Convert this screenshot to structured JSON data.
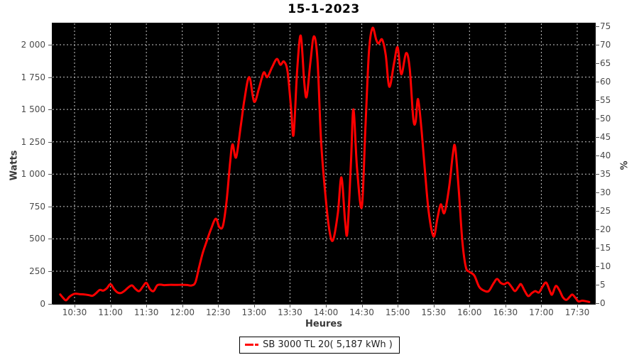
{
  "title": "15-1-2023",
  "chart_data": {
    "type": "line",
    "title": "15-1-2023",
    "xlabel": "Heures",
    "ylabel_left": "Watts",
    "ylabel_right": "%",
    "grid": true,
    "plot_background": "#000000",
    "grid_color": "#c8c8c8",
    "x_ticks": [
      "10:30",
      "11:00",
      "11:30",
      "12:00",
      "12:30",
      "13:00",
      "13:30",
      "14:00",
      "14:30",
      "15:00",
      "15:30",
      "16:00",
      "16:30",
      "17:00",
      "17:30"
    ],
    "xlim": [
      "10:12",
      "17:45"
    ],
    "y_ticks_left": [
      0,
      250,
      500,
      750,
      1000,
      1250,
      1500,
      1750,
      2000
    ],
    "y_tick_labels_left": [
      "0",
      "250",
      "500",
      "750",
      "1 000",
      "1 250",
      "1 500",
      "1 750",
      "2 000"
    ],
    "ylim_left": [
      0,
      2165
    ],
    "y_ticks_right": [
      0,
      5,
      10,
      15,
      20,
      25,
      30,
      35,
      40,
      45,
      50,
      55,
      60,
      65,
      70,
      75
    ],
    "ylim_right": [
      0,
      76
    ],
    "legend": {
      "label": "SB 3000 TL 20( 5,187 kWh )",
      "position": "bottom",
      "color": "#ff0000"
    },
    "series": [
      {
        "name": "SB 3000 TL 20( 5,187 kWh )",
        "color": "#ff0000",
        "units": "Watts",
        "points": [
          [
            "10:18",
            70
          ],
          [
            "10:21",
            38
          ],
          [
            "10:23",
            25
          ],
          [
            "10:26",
            55
          ],
          [
            "10:30",
            75
          ],
          [
            "10:34",
            73
          ],
          [
            "10:38",
            70
          ],
          [
            "10:42",
            65
          ],
          [
            "10:45",
            60
          ],
          [
            "10:48",
            80
          ],
          [
            "10:51",
            105
          ],
          [
            "10:54",
            100
          ],
          [
            "10:57",
            118
          ],
          [
            "11:00",
            150
          ],
          [
            "11:03",
            112
          ],
          [
            "11:06",
            85
          ],
          [
            "11:09",
            82
          ],
          [
            "11:12",
            100
          ],
          [
            "11:15",
            125
          ],
          [
            "11:18",
            140
          ],
          [
            "11:21",
            112
          ],
          [
            "11:24",
            96
          ],
          [
            "11:27",
            130
          ],
          [
            "11:30",
            160
          ],
          [
            "11:33",
            112
          ],
          [
            "11:36",
            96
          ],
          [
            "11:39",
            140
          ],
          [
            "11:42",
            146
          ],
          [
            "11:45",
            142
          ],
          [
            "11:50",
            145
          ],
          [
            "11:55",
            144
          ],
          [
            "12:00",
            145
          ],
          [
            "12:04",
            143
          ],
          [
            "12:08",
            140
          ],
          [
            "12:11",
            165
          ],
          [
            "12:14",
            278
          ],
          [
            "12:17",
            388
          ],
          [
            "12:20",
            470
          ],
          [
            "12:24",
            575
          ],
          [
            "12:28",
            655
          ],
          [
            "12:31",
            590
          ],
          [
            "12:34",
            600
          ],
          [
            "12:37",
            790
          ],
          [
            "12:40",
            1090
          ],
          [
            "12:42",
            1230
          ],
          [
            "12:45",
            1130
          ],
          [
            "12:49",
            1380
          ],
          [
            "12:52",
            1580
          ],
          [
            "12:56",
            1750
          ],
          [
            "13:00",
            1560
          ],
          [
            "13:04",
            1660
          ],
          [
            "13:08",
            1785
          ],
          [
            "13:11",
            1750
          ],
          [
            "13:15",
            1825
          ],
          [
            "13:19",
            1890
          ],
          [
            "13:22",
            1845
          ],
          [
            "13:25",
            1870
          ],
          [
            "13:28",
            1790
          ],
          [
            "13:31",
            1500
          ],
          [
            "13:33",
            1305
          ],
          [
            "13:36",
            1800
          ],
          [
            "13:39",
            2070
          ],
          [
            "13:42",
            1700
          ],
          [
            "13:44",
            1600
          ],
          [
            "13:47",
            1860
          ],
          [
            "13:50",
            2065
          ],
          [
            "13:53",
            1880
          ],
          [
            "13:56",
            1250
          ],
          [
            "14:00",
            800
          ],
          [
            "14:03",
            560
          ],
          [
            "14:06",
            490
          ],
          [
            "14:10",
            700
          ],
          [
            "14:13",
            975
          ],
          [
            "14:16",
            640
          ],
          [
            "14:18",
            552
          ],
          [
            "14:21",
            1100
          ],
          [
            "14:23",
            1500
          ],
          [
            "14:26",
            1050
          ],
          [
            "14:30",
            745
          ],
          [
            "14:33",
            1350
          ],
          [
            "14:36",
            1950
          ],
          [
            "14:39",
            2130
          ],
          [
            "14:42",
            2040
          ],
          [
            "14:44",
            2010
          ],
          [
            "14:47",
            2040
          ],
          [
            "14:50",
            1920
          ],
          [
            "14:53",
            1675
          ],
          [
            "14:57",
            1860
          ],
          [
            "15:00",
            1980
          ],
          [
            "15:03",
            1772
          ],
          [
            "15:07",
            1935
          ],
          [
            "15:10",
            1820
          ],
          [
            "15:13",
            1430
          ],
          [
            "15:15",
            1405
          ],
          [
            "15:17",
            1580
          ],
          [
            "15:20",
            1330
          ],
          [
            "15:23",
            1000
          ],
          [
            "15:26",
            700
          ],
          [
            "15:30",
            518
          ],
          [
            "15:33",
            650
          ],
          [
            "15:36",
            766
          ],
          [
            "15:39",
            700
          ],
          [
            "15:43",
            900
          ],
          [
            "15:46",
            1150
          ],
          [
            "15:48",
            1210
          ],
          [
            "15:51",
            880
          ],
          [
            "15:54",
            480
          ],
          [
            "15:57",
            280
          ],
          [
            "16:00",
            245
          ],
          [
            "16:04",
            217
          ],
          [
            "16:08",
            130
          ],
          [
            "16:12",
            100
          ],
          [
            "16:16",
            96
          ],
          [
            "16:20",
            155
          ],
          [
            "16:23",
            190
          ],
          [
            "16:26",
            160
          ],
          [
            "16:29",
            150
          ],
          [
            "16:32",
            162
          ],
          [
            "16:35",
            130
          ],
          [
            "16:38",
            96
          ],
          [
            "16:41",
            130
          ],
          [
            "16:43",
            150
          ],
          [
            "16:46",
            100
          ],
          [
            "16:49",
            58
          ],
          [
            "16:52",
            80
          ],
          [
            "16:55",
            96
          ],
          [
            "16:58",
            85
          ],
          [
            "17:01",
            130
          ],
          [
            "17:04",
            162
          ],
          [
            "17:07",
            100
          ],
          [
            "17:09",
            69
          ],
          [
            "17:12",
            135
          ],
          [
            "17:15",
            105
          ],
          [
            "17:18",
            48
          ],
          [
            "17:21",
            28
          ],
          [
            "17:24",
            55
          ],
          [
            "17:26",
            69
          ],
          [
            "17:29",
            38
          ],
          [
            "17:31",
            16
          ],
          [
            "17:34",
            22
          ],
          [
            "17:37",
            18
          ],
          [
            "17:40",
            12
          ]
        ]
      }
    ]
  }
}
